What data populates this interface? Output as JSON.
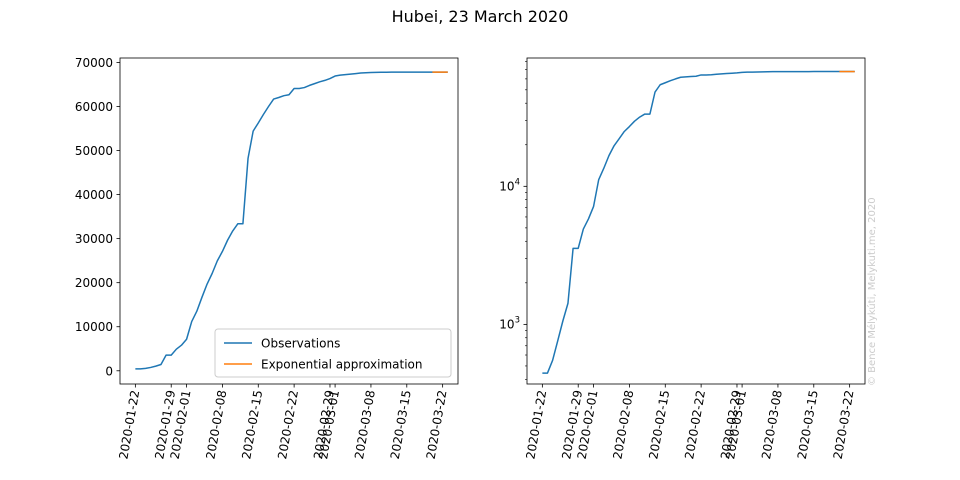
{
  "figure": {
    "title": "Hubei, 23 March 2020",
    "watermark": "© Bence Mélykúti, Melykuti.me, 2020"
  },
  "chart_data": [
    {
      "type": "line",
      "yscale": "linear",
      "ylim": [
        -3000,
        71000
      ],
      "xlim": [
        "2020-01-19",
        "2020-03-25"
      ],
      "y_ticks": [
        0,
        10000,
        20000,
        30000,
        40000,
        50000,
        60000,
        70000
      ],
      "y_tick_labels": [
        "0",
        "10000",
        "20000",
        "30000",
        "40000",
        "50000",
        "60000",
        "70000"
      ],
      "x_ticks": [
        "2020-01-22",
        "2020-01-29",
        "2020-02-01",
        "2020-02-08",
        "2020-02-15",
        "2020-02-22",
        "2020-02-29",
        "2020-03-01",
        "2020-03-08",
        "2020-03-15",
        "2020-03-22"
      ],
      "x_tick_labels": [
        "2020-01-22",
        "2020-01-29",
        "2020-02-01",
        "2020-02-08",
        "2020-02-15",
        "2020-02-22",
        "2020-02-29",
        "2020-03-01",
        "2020-03-08",
        "2020-03-15",
        "2020-03-22"
      ],
      "legend": {
        "show": true,
        "loc": "lower right"
      },
      "grid": false,
      "series": [
        {
          "name": "Observations",
          "color": "#1f77b4",
          "x": [
            "2020-01-22",
            "2020-01-23",
            "2020-01-24",
            "2020-01-25",
            "2020-01-26",
            "2020-01-27",
            "2020-01-28",
            "2020-01-29",
            "2020-01-30",
            "2020-01-31",
            "2020-02-01",
            "2020-02-02",
            "2020-02-03",
            "2020-02-04",
            "2020-02-05",
            "2020-02-06",
            "2020-02-07",
            "2020-02-08",
            "2020-02-09",
            "2020-02-10",
            "2020-02-11",
            "2020-02-12",
            "2020-02-13",
            "2020-02-14",
            "2020-02-15",
            "2020-02-16",
            "2020-02-17",
            "2020-02-18",
            "2020-02-19",
            "2020-02-20",
            "2020-02-21",
            "2020-02-22",
            "2020-02-23",
            "2020-02-24",
            "2020-02-25",
            "2020-02-26",
            "2020-02-27",
            "2020-02-28",
            "2020-02-29",
            "2020-03-01",
            "2020-03-02",
            "2020-03-03",
            "2020-03-04",
            "2020-03-05",
            "2020-03-06",
            "2020-03-07",
            "2020-03-08",
            "2020-03-09",
            "2020-03-10",
            "2020-03-11",
            "2020-03-12",
            "2020-03-13",
            "2020-03-14",
            "2020-03-15",
            "2020-03-16",
            "2020-03-17",
            "2020-03-18",
            "2020-03-19",
            "2020-03-20",
            "2020-03-21",
            "2020-03-22",
            "2020-03-23"
          ],
          "y": [
            444,
            444,
            549,
            761,
            1058,
            1423,
            3554,
            3554,
            4903,
            5806,
            7153,
            11177,
            13522,
            16678,
            19665,
            22112,
            24953,
            27100,
            29631,
            31728,
            33366,
            33366,
            48206,
            54406,
            56249,
            58182,
            59989,
            61682,
            62031,
            62442,
            62662,
            64084,
            64084,
            64287,
            64786,
            65187,
            65596,
            65914,
            66337,
            66907,
            67103,
            67217,
            67332,
            67466,
            67592,
            67666,
            67707,
            67743,
            67760,
            67773,
            67781,
            67786,
            67790,
            67794,
            67798,
            67799,
            67800,
            67800,
            67800,
            67800,
            67800,
            67801
          ]
        },
        {
          "name": "Exponential approximation",
          "color": "#ff7f0e",
          "x": [
            "2020-03-20",
            "2020-03-21",
            "2020-03-22",
            "2020-03-23"
          ],
          "y": [
            67800,
            67800,
            67800,
            67801
          ]
        }
      ]
    },
    {
      "type": "line",
      "yscale": "log",
      "ylim": [
        370,
        85000
      ],
      "xlim": [
        "2020-01-19",
        "2020-03-25"
      ],
      "y_ticks": [
        1000,
        10000
      ],
      "y_tick_labels": [
        "10^3",
        "10^4"
      ],
      "x_ticks": [
        "2020-01-22",
        "2020-01-29",
        "2020-02-01",
        "2020-02-08",
        "2020-02-15",
        "2020-02-22",
        "2020-02-29",
        "2020-03-01",
        "2020-03-08",
        "2020-03-15",
        "2020-03-22"
      ],
      "x_tick_labels": [
        "2020-01-22",
        "2020-01-29",
        "2020-02-01",
        "2020-02-08",
        "2020-02-15",
        "2020-02-22",
        "2020-02-29",
        "2020-03-01",
        "2020-03-08",
        "2020-03-15",
        "2020-03-22"
      ],
      "legend": {
        "show": false
      },
      "grid": false,
      "series": [
        {
          "name": "Observations",
          "color": "#1f77b4",
          "x": [
            "2020-01-22",
            "2020-01-23",
            "2020-01-24",
            "2020-01-25",
            "2020-01-26",
            "2020-01-27",
            "2020-01-28",
            "2020-01-29",
            "2020-01-30",
            "2020-01-31",
            "2020-02-01",
            "2020-02-02",
            "2020-02-03",
            "2020-02-04",
            "2020-02-05",
            "2020-02-06",
            "2020-02-07",
            "2020-02-08",
            "2020-02-09",
            "2020-02-10",
            "2020-02-11",
            "2020-02-12",
            "2020-02-13",
            "2020-02-14",
            "2020-02-15",
            "2020-02-16",
            "2020-02-17",
            "2020-02-18",
            "2020-02-19",
            "2020-02-20",
            "2020-02-21",
            "2020-02-22",
            "2020-02-23",
            "2020-02-24",
            "2020-02-25",
            "2020-02-26",
            "2020-02-27",
            "2020-02-28",
            "2020-02-29",
            "2020-03-01",
            "2020-03-02",
            "2020-03-03",
            "2020-03-04",
            "2020-03-05",
            "2020-03-06",
            "2020-03-07",
            "2020-03-08",
            "2020-03-09",
            "2020-03-10",
            "2020-03-11",
            "2020-03-12",
            "2020-03-13",
            "2020-03-14",
            "2020-03-15",
            "2020-03-16",
            "2020-03-17",
            "2020-03-18",
            "2020-03-19",
            "2020-03-20",
            "2020-03-21",
            "2020-03-22",
            "2020-03-23"
          ],
          "y": [
            444,
            444,
            549,
            761,
            1058,
            1423,
            3554,
            3554,
            4903,
            5806,
            7153,
            11177,
            13522,
            16678,
            19665,
            22112,
            24953,
            27100,
            29631,
            31728,
            33366,
            33366,
            48206,
            54406,
            56249,
            58182,
            59989,
            61682,
            62031,
            62442,
            62662,
            64084,
            64084,
            64287,
            64786,
            65187,
            65596,
            65914,
            66337,
            66907,
            67103,
            67217,
            67332,
            67466,
            67592,
            67666,
            67707,
            67743,
            67760,
            67773,
            67781,
            67786,
            67790,
            67794,
            67798,
            67799,
            67800,
            67800,
            67800,
            67800,
            67800,
            67801
          ]
        },
        {
          "name": "Exponential approximation",
          "color": "#ff7f0e",
          "x": [
            "2020-03-20",
            "2020-03-21",
            "2020-03-22",
            "2020-03-23"
          ],
          "y": [
            67800,
            67800,
            67800,
            67801
          ]
        }
      ]
    }
  ]
}
